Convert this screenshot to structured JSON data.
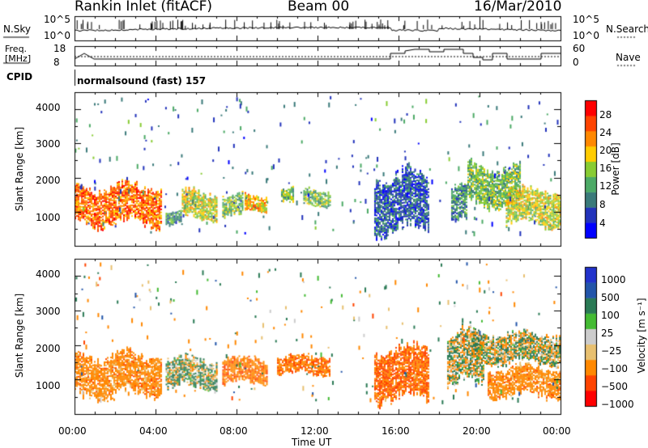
{
  "header": {
    "station": "Rankin Inlet (fitACF)",
    "beam": "Beam 00",
    "date": "16/Mar/2010"
  },
  "top_panels": {
    "nsky_label": "N.Sky",
    "nsearch_label": "N.Search",
    "noise_ticks": [
      "10^5",
      "10^0"
    ],
    "freq_label_1": "Freq.",
    "freq_label_2": "[MHz]",
    "freq_ticks": [
      "18",
      "8"
    ],
    "nave_label": "Nave",
    "nave_ticks": [
      "60",
      "0"
    ],
    "cpid_label": "CPID",
    "cpid_text": "normalsound (fast) 157"
  },
  "colors": {
    "power_scale": [
      "#0000ff",
      "#2233bb",
      "#3a7a7a",
      "#4caa66",
      "#88cc33",
      "#ffcc00",
      "#ff8800",
      "#ff4400",
      "#ff0000"
    ],
    "velocity_scale": [
      "#2233cc",
      "#2255aa",
      "#2a7a55",
      "#44bb33",
      "#cccccc",
      "#e8c070",
      "#ff8800",
      "#ff4400",
      "#ff0000"
    ],
    "line": "#000000"
  },
  "chart_data": [
    {
      "type": "heatmap",
      "name": "power",
      "ylabel": "Slant Range [km]",
      "yticks": [
        "1000",
        "2000",
        "3000",
        "4000"
      ],
      "ylim": [
        0,
        4500
      ],
      "colorbar_label": "Power [dB]",
      "colorbar_ticks": [
        "4",
        "8",
        "12",
        "16",
        "20",
        "24",
        "28"
      ],
      "xlim": [
        "00:00",
        "24:00"
      ],
      "bands": [
        {
          "t_start": 0.0,
          "t_end": 4.3,
          "r_low": 550,
          "r_high": 1800,
          "level": 26
        },
        {
          "t_start": 4.5,
          "t_end": 5.3,
          "r_low": 550,
          "r_high": 1000,
          "level": 12
        },
        {
          "t_start": 5.3,
          "t_end": 7.0,
          "r_low": 700,
          "r_high": 1650,
          "level": 20
        },
        {
          "t_start": 7.3,
          "t_end": 8.3,
          "r_low": 800,
          "r_high": 1500,
          "level": 14
        },
        {
          "t_start": 8.4,
          "t_end": 9.5,
          "r_low": 950,
          "r_high": 1500,
          "level": 22
        },
        {
          "t_start": 10.2,
          "t_end": 10.8,
          "r_low": 1200,
          "r_high": 1700,
          "level": 14
        },
        {
          "t_start": 11.3,
          "t_end": 12.6,
          "r_low": 1100,
          "r_high": 1650,
          "level": 16
        },
        {
          "t_start": 14.8,
          "t_end": 17.5,
          "r_low": 300,
          "r_high": 2200,
          "level": 8
        },
        {
          "t_start": 18.6,
          "t_end": 19.4,
          "r_low": 600,
          "r_high": 1800,
          "level": 10
        },
        {
          "t_start": 19.4,
          "t_end": 22.0,
          "r_low": 1100,
          "r_high": 2400,
          "level": 14
        },
        {
          "t_start": 21.3,
          "t_end": 24.0,
          "r_low": 550,
          "r_high": 1700,
          "level": 18
        }
      ]
    },
    {
      "type": "heatmap",
      "name": "velocity",
      "ylabel": "Slant Range [km]",
      "yticks": [
        "1000",
        "2000",
        "3000",
        "4000"
      ],
      "ylim": [
        0,
        4500
      ],
      "colorbar_label": "Velocity [m s⁻¹]",
      "colorbar_ticks": [
        "1000",
        "500",
        "100",
        "25",
        "−25",
        "−100",
        "−500",
        "−1000"
      ],
      "xlabel": "Time UT",
      "xticks": [
        "00:00",
        "04:00",
        "08:00",
        "12:00",
        "16:00",
        "20:00",
        "00:00"
      ],
      "xlim": [
        "00:00",
        "24:00"
      ],
      "bands": [
        {
          "t_start": 0.0,
          "t_end": 4.3,
          "r_low": 450,
          "r_high": 1800,
          "level": -300
        },
        {
          "t_start": 4.5,
          "t_end": 7.0,
          "r_low": 700,
          "r_high": 1650,
          "level": 50
        },
        {
          "t_start": 7.3,
          "t_end": 9.5,
          "r_low": 800,
          "r_high": 1650,
          "level": -400
        },
        {
          "t_start": 10.0,
          "t_end": 12.6,
          "r_low": 1100,
          "r_high": 1700,
          "level": -400
        },
        {
          "t_start": 14.8,
          "t_end": 17.5,
          "r_low": 300,
          "r_high": 2000,
          "level": -500
        },
        {
          "t_start": 18.4,
          "t_end": 20.2,
          "r_low": 700,
          "r_high": 2400,
          "level": 0
        },
        {
          "t_start": 19.6,
          "t_end": 24.0,
          "r_low": 1400,
          "r_high": 2400,
          "level": 0
        },
        {
          "t_start": 20.4,
          "t_end": 24.0,
          "r_low": 450,
          "r_high": 1400,
          "level": -300
        }
      ]
    }
  ]
}
